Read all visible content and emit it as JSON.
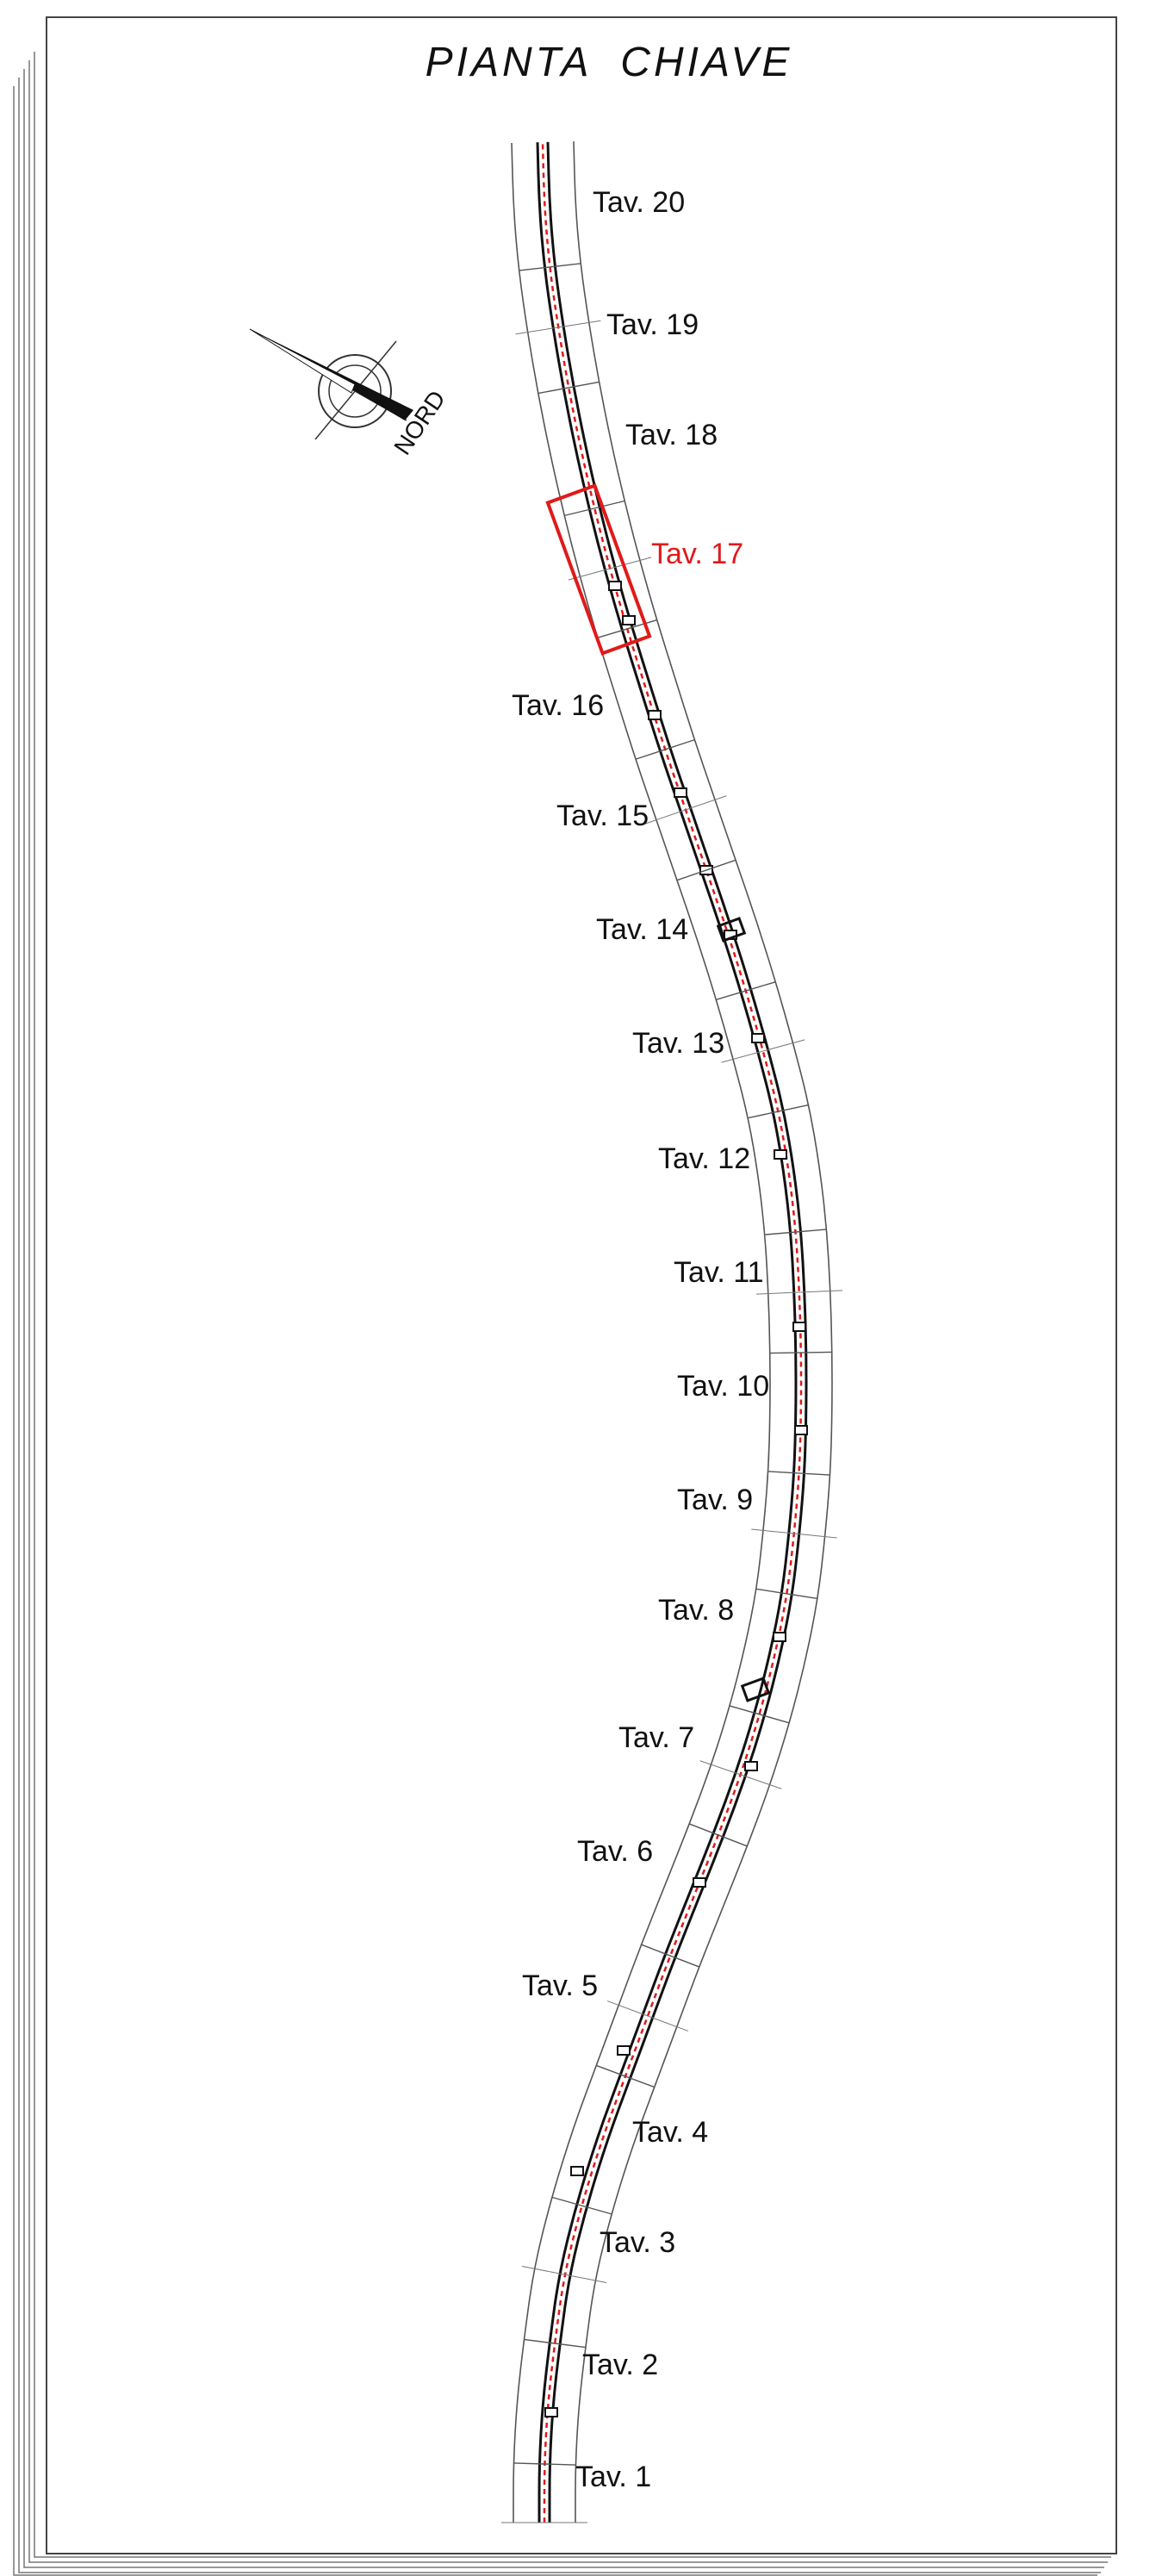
{
  "title": "PIANTA  CHIAVE",
  "north_label": "NORD",
  "selected_sheet": "Tav. 17",
  "colors": {
    "selected": "#e01a1a",
    "line": "#111111",
    "road_marking": "#e01a1a"
  },
  "sheets": [
    {
      "label": "Tav. 1"
    },
    {
      "label": "Tav. 2"
    },
    {
      "label": "Tav. 3"
    },
    {
      "label": "Tav. 4"
    },
    {
      "label": "Tav. 5"
    },
    {
      "label": "Tav. 6"
    },
    {
      "label": "Tav. 7"
    },
    {
      "label": "Tav. 8"
    },
    {
      "label": "Tav. 9"
    },
    {
      "label": "Tav. 10"
    },
    {
      "label": "Tav. 11"
    },
    {
      "label": "Tav. 12"
    },
    {
      "label": "Tav. 13"
    },
    {
      "label": "Tav. 14"
    },
    {
      "label": "Tav. 15"
    },
    {
      "label": "Tav. 16"
    },
    {
      "label": "Tav. 17"
    },
    {
      "label": "Tav. 18"
    },
    {
      "label": "Tav. 19"
    },
    {
      "label": "Tav. 20"
    }
  ]
}
